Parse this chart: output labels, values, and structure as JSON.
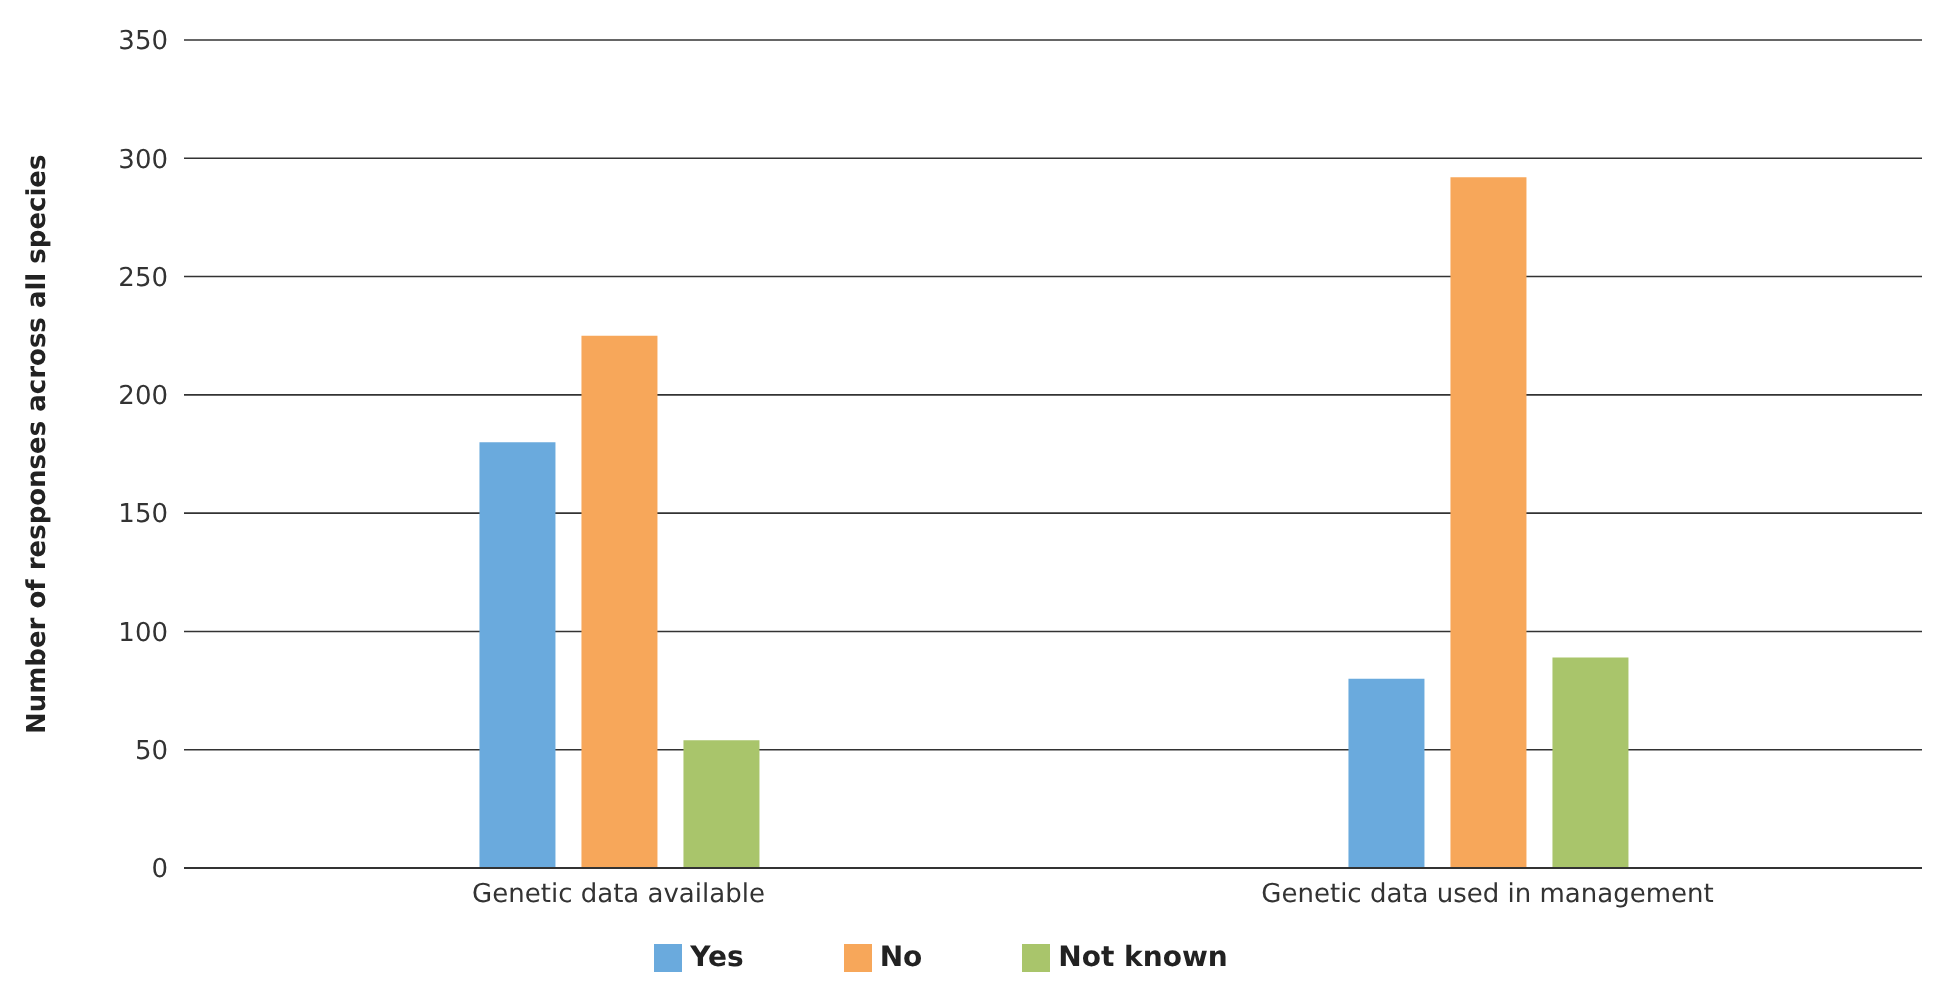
{
  "chart_data": {
    "type": "bar",
    "ylabel": "Number of responses across all species",
    "categories": [
      "Genetic data available",
      "Genetic data used in management"
    ],
    "series": [
      {
        "name": "Yes",
        "color": "#6aaadd",
        "values": [
          180,
          80
        ]
      },
      {
        "name": "No",
        "color": "#f7a75a",
        "values": [
          225,
          292
        ]
      },
      {
        "name": "Not known",
        "color": "#a9c56b",
        "values": [
          54,
          89
        ]
      }
    ],
    "ylim": [
      0,
      350
    ],
    "yticks": [
      0,
      50,
      100,
      150,
      200,
      250,
      300,
      350
    ],
    "grid": "y",
    "legend": "bottom"
  }
}
